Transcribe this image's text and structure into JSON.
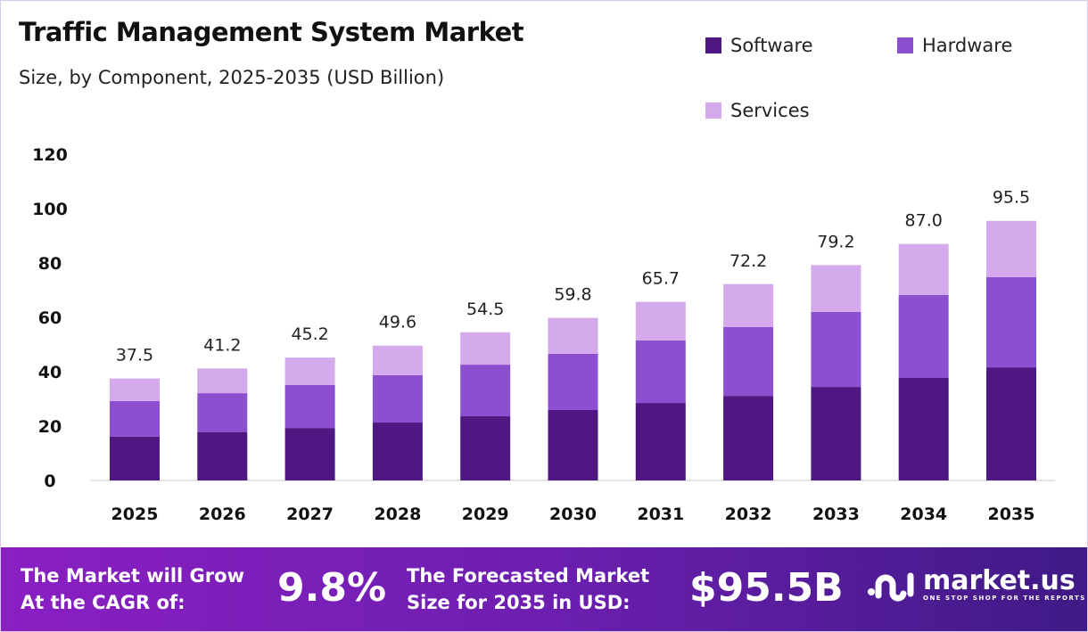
{
  "chart_data": {
    "type": "bar",
    "stacked": true,
    "title": "Traffic Management System Market",
    "subtitle": "Size, by Component, 2025-2035 (USD Billion)",
    "categories": [
      "2025",
      "2026",
      "2027",
      "2028",
      "2029",
      "2030",
      "2031",
      "2032",
      "2033",
      "2034",
      "2035"
    ],
    "series": [
      {
        "name": "Software",
        "color": "#4e1782",
        "values": [
          16.1,
          17.7,
          19.3,
          21.3,
          23.6,
          25.9,
          28.5,
          31.1,
          34.4,
          37.7,
          41.6
        ]
      },
      {
        "name": "Hardware",
        "color": "#8c4fd0",
        "values": [
          13.1,
          14.4,
          15.8,
          17.4,
          19.0,
          20.7,
          23.0,
          25.3,
          27.6,
          30.5,
          33.2
        ]
      },
      {
        "name": "Services",
        "color": "#d4aaec",
        "values": [
          8.3,
          9.1,
          10.1,
          10.9,
          11.9,
          13.2,
          14.2,
          15.8,
          17.2,
          18.8,
          20.7
        ]
      }
    ],
    "totals": [
      "37.5",
      "41.2",
      "45.2",
      "49.6",
      "54.5",
      "59.8",
      "65.7",
      "72.2",
      "79.2",
      "87.0",
      "95.5"
    ],
    "yticks": [
      "0",
      "20",
      "40",
      "60",
      "80",
      "100",
      "120"
    ],
    "ylim": [
      0,
      120
    ],
    "grid": false,
    "legend_position": "top-right"
  },
  "footer": {
    "cagr_label_1": "The Market will Grow",
    "cagr_label_2": "At the CAGR of:",
    "cagr_value": "9.8%",
    "forecast_label_1": "The Forecasted Market",
    "forecast_label_2": "Size for 2035 in USD:",
    "forecast_value": "$95.5B",
    "logo_text": "market.us",
    "logo_tagline": "ONE STOP SHOP FOR THE REPORTS"
  }
}
